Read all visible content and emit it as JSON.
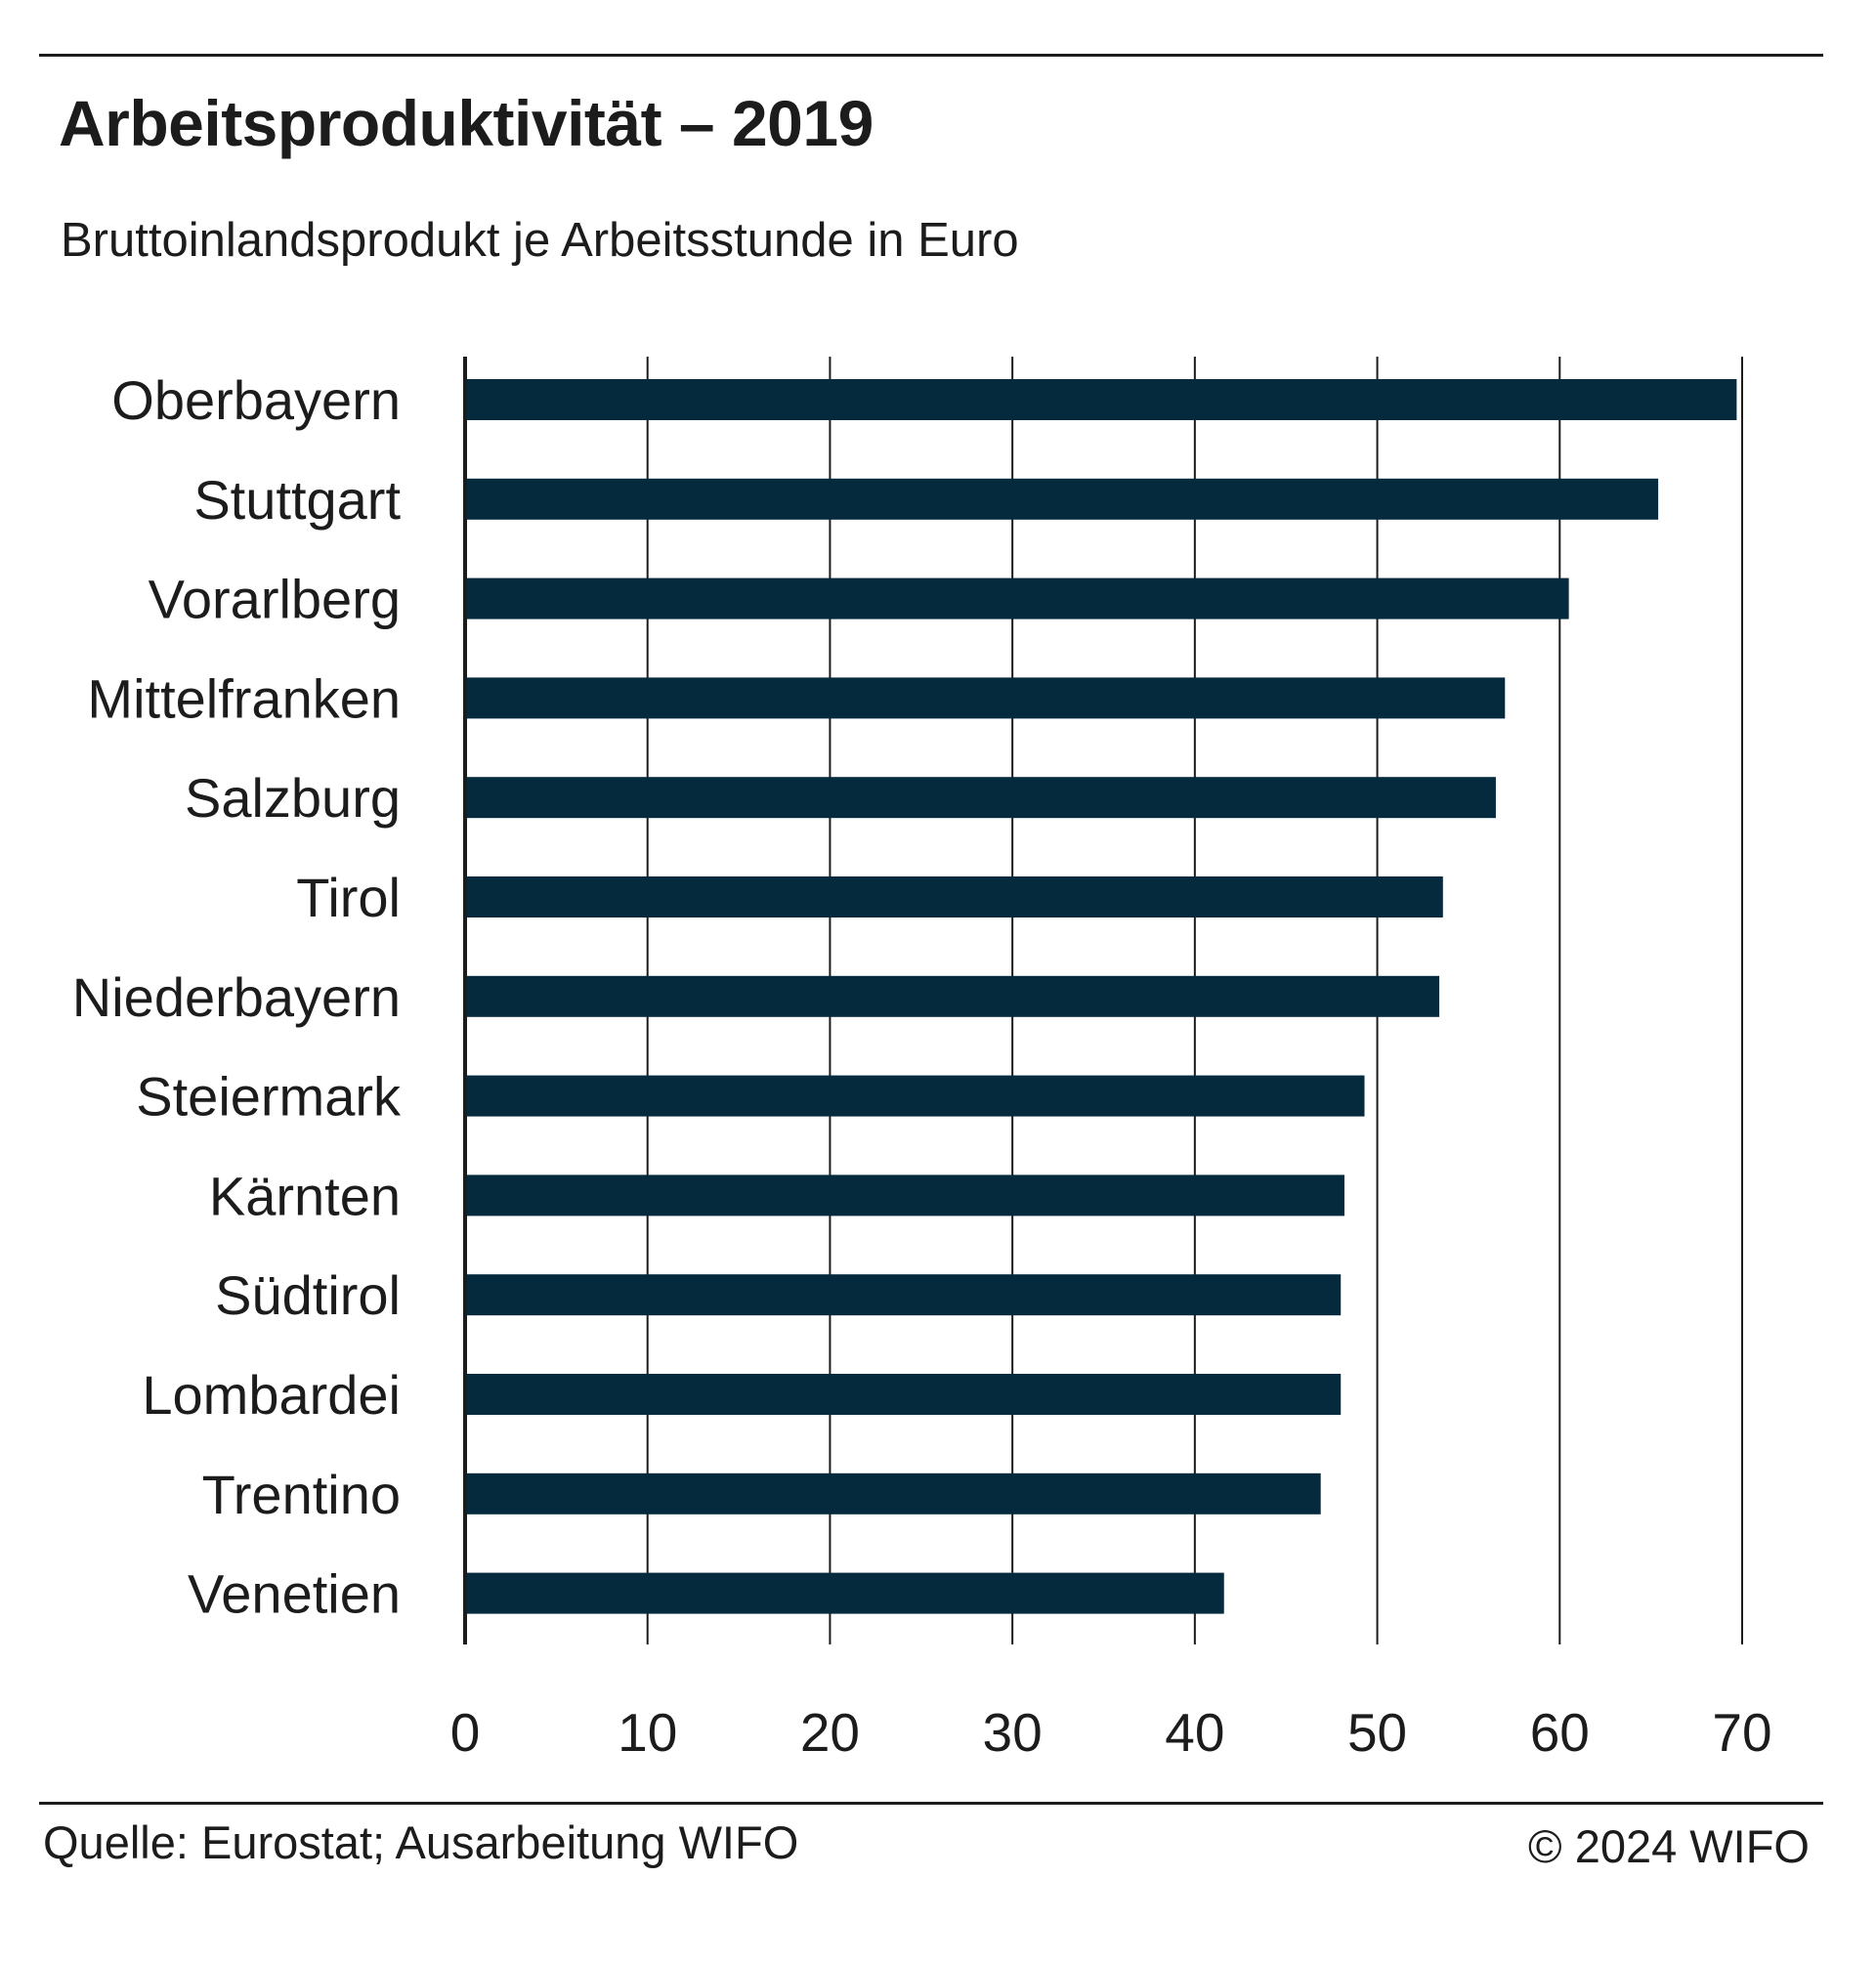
{
  "chart_data": {
    "type": "bar",
    "orientation": "horizontal",
    "title": "Arbeitsproduktivität – 2019",
    "subtitle": "Bruttoinlandsprodukt je Arbeitsstunde in Euro",
    "xlabel": "",
    "ylabel": "",
    "categories": [
      "Oberbayern",
      "Stuttgart",
      "Vorarlberg",
      "Mittelfranken",
      "Salzburg",
      "Tirol",
      "Niederbayern",
      "Steiermark",
      "Kärnten",
      "Südtirol",
      "Lombardei",
      "Trentino",
      "Venetien"
    ],
    "values": [
      69.7,
      65.4,
      60.5,
      57.0,
      56.5,
      53.6,
      53.4,
      49.3,
      48.2,
      48.0,
      48.0,
      46.9,
      41.6
    ],
    "xlim": [
      0,
      70
    ],
    "xticks": [
      "0",
      "10",
      "20",
      "30",
      "40",
      "50",
      "60",
      "70"
    ],
    "grid": "vertical",
    "legend": "none",
    "bar_color": "#062a3d"
  },
  "footer": {
    "source": "Quelle: Eurostat; Ausarbeitung WIFO",
    "copyright": "© 2024 WIFO"
  }
}
